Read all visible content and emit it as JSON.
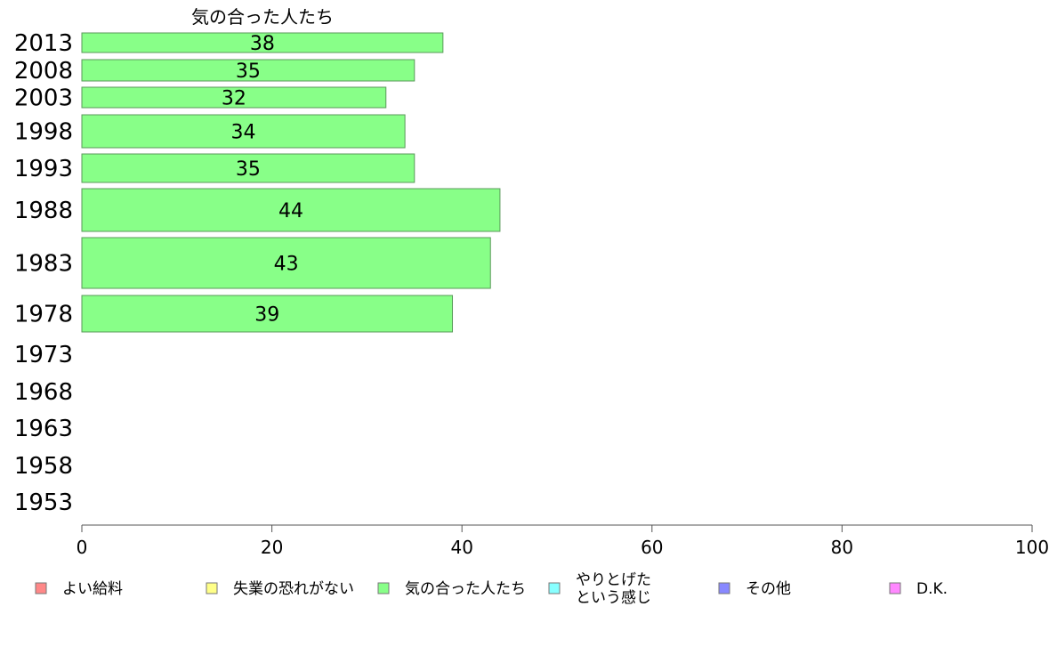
{
  "chart_data": {
    "type": "bar",
    "orientation": "horizontal",
    "title": "気の合った人たち",
    "categories": [
      "2013",
      "2008",
      "2003",
      "1998",
      "1993",
      "1988",
      "1983",
      "1978",
      "1973",
      "1968",
      "1963",
      "1958",
      "1953"
    ],
    "series": [
      {
        "name": "気の合った人たち",
        "color": "#88ff88",
        "values": [
          38,
          35,
          32,
          34,
          35,
          44,
          43,
          39,
          null,
          null,
          null,
          null,
          null
        ],
        "labels": [
          "38",
          "35",
          "32",
          "34",
          "35",
          "44",
          "43",
          "39",
          "",
          "",
          "",
          "",
          ""
        ]
      }
    ],
    "xlim": [
      0,
      100
    ],
    "xticks": [
      "0",
      "20",
      "40",
      "60",
      "80",
      "100"
    ],
    "grid": false,
    "legend_position": "bottom"
  },
  "legend": [
    {
      "label": "よい給料",
      "color": "#ff8888"
    },
    {
      "label": "失業の恐れがない",
      "color": "#ffff88"
    },
    {
      "label": "気の合った人たち",
      "color": "#88ff88"
    },
    {
      "label_lines": [
        "やりとげた",
        "という感じ"
      ],
      "color": "#88ffff"
    },
    {
      "label": "その他",
      "color": "#8888ff"
    },
    {
      "label": "D.K.",
      "color": "#ff88ff"
    }
  ]
}
